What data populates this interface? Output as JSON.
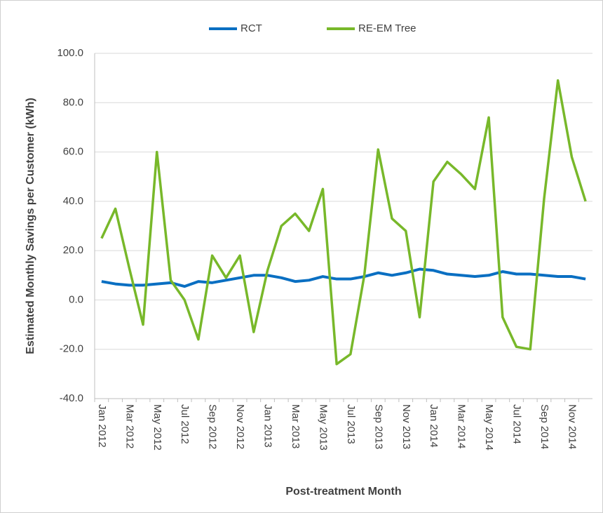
{
  "chart_data": {
    "type": "line",
    "x_label": "Post-treatment Month",
    "y_label": "Estimated Monthly Savings per Customer (kWh)",
    "categories": [
      "Jan 2012",
      null,
      "Mar 2012",
      null,
      "May 2012",
      null,
      "Jul 2012",
      null,
      "Sep 2012",
      null,
      "Nov 2012",
      null,
      "Jan 2013",
      null,
      "Mar 2013",
      null,
      "May 2013",
      null,
      "Jul 2013",
      null,
      "Sep 2013",
      null,
      "Nov 2013",
      null,
      "Jan 2014",
      null,
      "Mar 2014",
      null,
      "May 2014",
      null,
      "Jul 2014",
      null,
      "Sep 2014",
      null,
      "Nov 2014",
      null
    ],
    "series": [
      {
        "name": "RCT",
        "color": "#0a6fc2",
        "values": [
          7.5,
          6.5,
          6,
          6,
          6.5,
          7,
          5.5,
          7.5,
          7,
          8,
          9,
          10,
          10,
          9,
          7.5,
          8,
          9.5,
          8.5,
          8.5,
          9.5,
          11,
          10,
          11,
          12.5,
          12,
          10.5,
          10,
          9.5,
          10,
          11.5,
          10.5,
          10.5,
          10,
          9.5,
          9.5,
          8.5
        ]
      },
      {
        "name": "RE-EM Tree",
        "color": "#78b82a",
        "values": [
          25,
          37,
          13,
          -10,
          60,
          8,
          0,
          -16,
          18,
          9,
          18,
          -13,
          12,
          30,
          35,
          28,
          45,
          -26,
          -22,
          10,
          61,
          33,
          28,
          -7,
          48,
          56,
          51,
          45,
          74,
          -7,
          -19,
          -20,
          41,
          89,
          58,
          40
        ]
      }
    ],
    "ylim": [
      -40,
      100
    ],
    "yticks": [
      {
        "value": -40,
        "label": "-40.0"
      },
      {
        "value": -20,
        "label": "-20.0"
      },
      {
        "value": 0,
        "label": "0.0"
      },
      {
        "value": 20,
        "label": "20.0"
      },
      {
        "value": 40,
        "label": "40.0"
      },
      {
        "value": 60,
        "label": "60.0"
      },
      {
        "value": 80,
        "label": "80.0"
      },
      {
        "value": 100,
        "label": "100.0"
      }
    ],
    "grid": true,
    "legend": "top"
  }
}
